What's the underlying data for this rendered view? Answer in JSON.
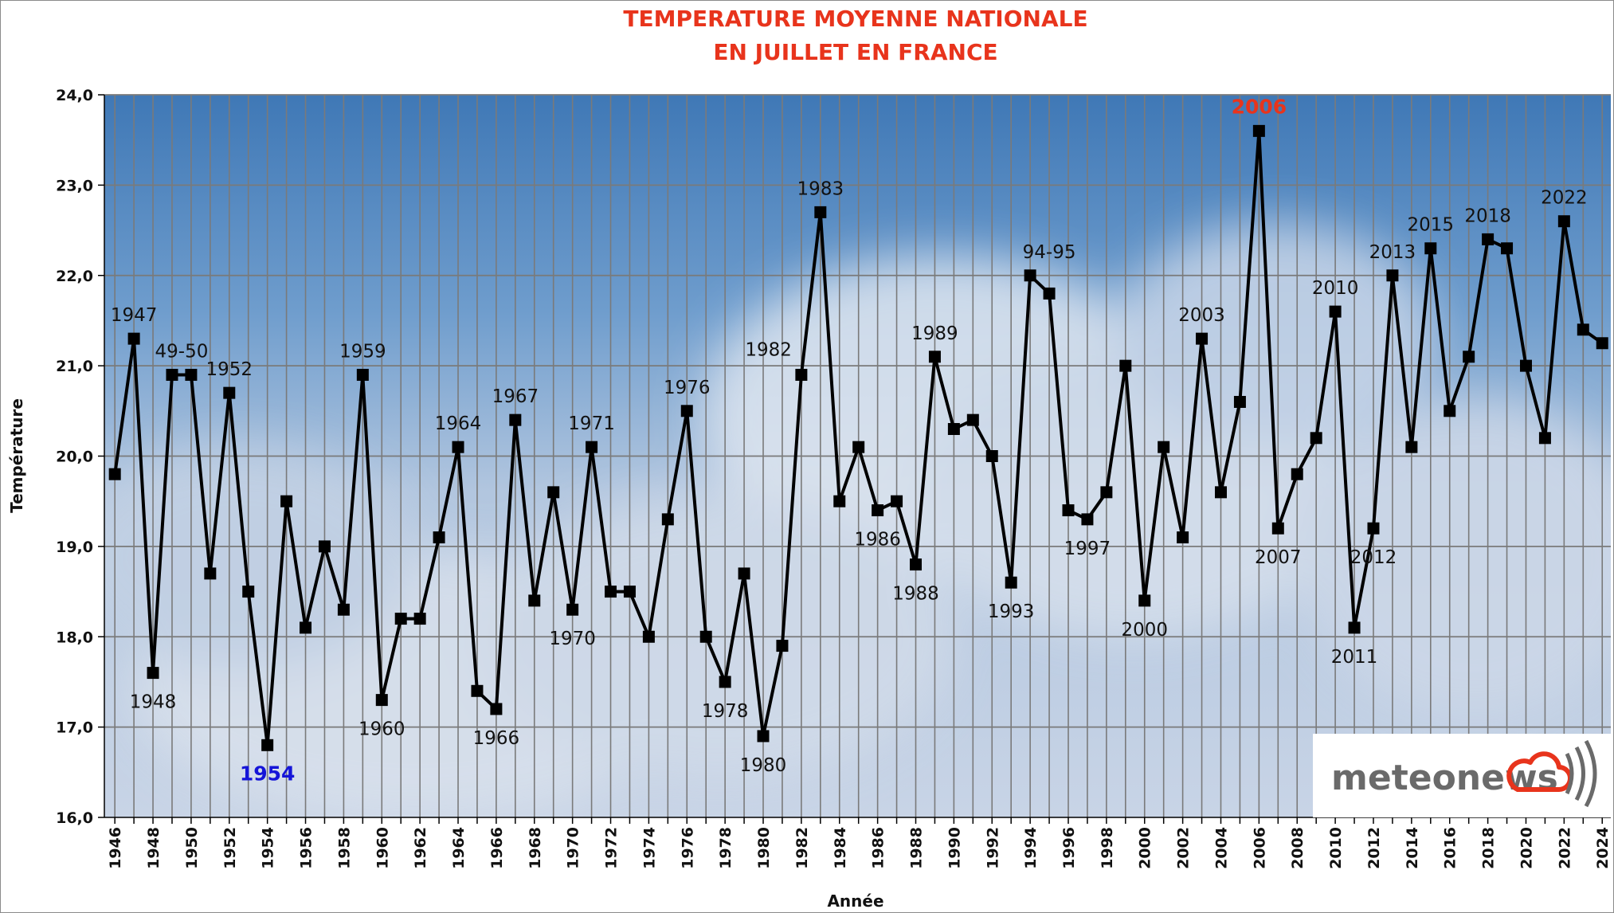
{
  "chart_data": {
    "type": "line",
    "title": "TEMPERATURE MOYENNE NATIONALE",
    "subtitle": "EN JUILLET EN FRANCE",
    "xlabel": "Année",
    "ylabel": "Température",
    "ylim": [
      16,
      24
    ],
    "xlim": [
      1946,
      2024
    ],
    "grid": true,
    "y_ticks": [
      "16,0",
      "17,0",
      "18,0",
      "19,0",
      "20,0",
      "21,0",
      "22,0",
      "23,0",
      "24,0"
    ],
    "x_ticks": [
      "1946",
      "1948",
      "1950",
      "1952",
      "1954",
      "1956",
      "1958",
      "1960",
      "1962",
      "1964",
      "1966",
      "1968",
      "1970",
      "1972",
      "1974",
      "1976",
      "1978",
      "1980",
      "1982",
      "1984",
      "1986",
      "1988",
      "1990",
      "1992",
      "1994",
      "1996",
      "1998",
      "2000",
      "2002",
      "2004",
      "2006",
      "2008",
      "2010",
      "2012",
      "2014",
      "2016",
      "2018",
      "2020",
      "2022",
      "2024"
    ],
    "series": [
      {
        "color": "#000000",
        "x": [
          1946,
          1947,
          1948,
          1949,
          1950,
          1951,
          1952,
          1953,
          1954,
          1955,
          1956,
          1957,
          1958,
          1959,
          1960,
          1961,
          1962,
          1963,
          1964,
          1965,
          1966,
          1967,
          1968,
          1969,
          1970,
          1971,
          1972,
          1973,
          1974,
          1975,
          1976,
          1977,
          1978,
          1979,
          1980,
          1981,
          1982,
          1983,
          1984,
          1985,
          1986,
          1987,
          1988,
          1989,
          1990,
          1991,
          1992,
          1993,
          1994,
          1995,
          1996,
          1997,
          1998,
          1999,
          2000,
          2001,
          2002,
          2003,
          2004,
          2005,
          2006,
          2007,
          2008,
          2009,
          2010,
          2011,
          2012,
          2013,
          2014,
          2015,
          2016,
          2017,
          2018,
          2019,
          2020,
          2021,
          2022,
          2023,
          2024
        ],
        "y": [
          19.8,
          21.3,
          17.6,
          20.9,
          20.9,
          18.7,
          20.7,
          18.5,
          16.8,
          19.5,
          18.1,
          19.0,
          18.3,
          20.9,
          17.3,
          18.2,
          18.2,
          19.1,
          20.1,
          17.4,
          17.2,
          20.4,
          18.4,
          19.6,
          18.3,
          20.1,
          18.5,
          18.5,
          18.0,
          19.3,
          20.5,
          18.0,
          17.5,
          18.7,
          16.9,
          17.9,
          20.9,
          22.7,
          19.5,
          20.1,
          19.4,
          19.5,
          18.8,
          21.1,
          20.3,
          20.4,
          20.0,
          18.6,
          22.0,
          21.8,
          19.4,
          19.3,
          19.6,
          21.0,
          18.4,
          20.1,
          19.1,
          21.3,
          19.6,
          20.6,
          23.6,
          19.2,
          19.8,
          20.2,
          21.6,
          18.1,
          19.2,
          22.0,
          20.1,
          22.3,
          20.5,
          21.1,
          22.4,
          22.3,
          21.0,
          20.2,
          22.6,
          21.4,
          21.25
        ]
      }
    ],
    "annotations": [
      {
        "text": "1947",
        "x": 1947,
        "y": 21.3,
        "pos": "above",
        "style": "normal"
      },
      {
        "text": "1948",
        "x": 1948,
        "y": 17.6,
        "pos": "below",
        "style": "normal"
      },
      {
        "text": "49-50",
        "x": 1949.5,
        "y": 20.9,
        "pos": "above",
        "style": "normal"
      },
      {
        "text": "1952",
        "x": 1952,
        "y": 20.7,
        "pos": "above",
        "style": "normal"
      },
      {
        "text": "1954",
        "x": 1954,
        "y": 16.8,
        "pos": "below",
        "style": "cold"
      },
      {
        "text": "1959",
        "x": 1959,
        "y": 20.9,
        "pos": "above",
        "style": "normal"
      },
      {
        "text": "1960",
        "x": 1960,
        "y": 17.3,
        "pos": "below",
        "style": "normal"
      },
      {
        "text": "1964",
        "x": 1964,
        "y": 20.1,
        "pos": "above",
        "style": "normal"
      },
      {
        "text": "1966",
        "x": 1966,
        "y": 17.2,
        "pos": "below",
        "style": "normal"
      },
      {
        "text": "1967",
        "x": 1967,
        "y": 20.4,
        "pos": "above",
        "style": "normal"
      },
      {
        "text": "1970",
        "x": 1970,
        "y": 18.3,
        "pos": "below",
        "style": "normal"
      },
      {
        "text": "1971",
        "x": 1971,
        "y": 20.1,
        "pos": "above",
        "style": "normal"
      },
      {
        "text": "1976",
        "x": 1976,
        "y": 20.5,
        "pos": "above",
        "style": "normal"
      },
      {
        "text": "1978",
        "x": 1978,
        "y": 17.5,
        "pos": "below",
        "style": "normal"
      },
      {
        "text": "1980",
        "x": 1980,
        "y": 16.9,
        "pos": "below",
        "style": "normal"
      },
      {
        "text": "1982",
        "x": 1982,
        "y": 20.9,
        "pos": "above-left",
        "style": "normal"
      },
      {
        "text": "1983",
        "x": 1983,
        "y": 22.7,
        "pos": "above",
        "style": "normal"
      },
      {
        "text": "1986",
        "x": 1986,
        "y": 19.4,
        "pos": "below",
        "style": "normal"
      },
      {
        "text": "1988",
        "x": 1988,
        "y": 18.8,
        "pos": "below",
        "style": "normal"
      },
      {
        "text": "1989",
        "x": 1989,
        "y": 21.1,
        "pos": "above",
        "style": "normal"
      },
      {
        "text": "1993",
        "x": 1993,
        "y": 18.6,
        "pos": "below",
        "style": "normal"
      },
      {
        "text": "94-95",
        "x": 1995,
        "y": 22.0,
        "pos": "above",
        "style": "normal"
      },
      {
        "text": "1997",
        "x": 1997,
        "y": 19.3,
        "pos": "below",
        "style": "normal"
      },
      {
        "text": "2000",
        "x": 2000,
        "y": 18.4,
        "pos": "below",
        "style": "normal"
      },
      {
        "text": "2003",
        "x": 2003,
        "y": 21.3,
        "pos": "above",
        "style": "normal"
      },
      {
        "text": "2006",
        "x": 2006,
        "y": 23.6,
        "pos": "above",
        "style": "hot"
      },
      {
        "text": "2007",
        "x": 2007,
        "y": 19.2,
        "pos": "below",
        "style": "normal"
      },
      {
        "text": "2010",
        "x": 2010,
        "y": 21.6,
        "pos": "above",
        "style": "normal"
      },
      {
        "text": "2011",
        "x": 2011,
        "y": 18.1,
        "pos": "below",
        "style": "normal"
      },
      {
        "text": "2012",
        "x": 2012,
        "y": 19.2,
        "pos": "below",
        "style": "normal"
      },
      {
        "text": "2013",
        "x": 2013,
        "y": 22.0,
        "pos": "above",
        "style": "normal"
      },
      {
        "text": "2015",
        "x": 2015,
        "y": 22.3,
        "pos": "above",
        "style": "normal"
      },
      {
        "text": "2018",
        "x": 2018,
        "y": 22.4,
        "pos": "above",
        "style": "normal"
      },
      {
        "text": "2022",
        "x": 2022,
        "y": 22.6,
        "pos": "above",
        "style": "normal"
      }
    ]
  },
  "logo": {
    "text": "meteonews",
    "icon": "cloud-icon"
  },
  "colors": {
    "title": "#e8341c",
    "hot_label": "#e8341c",
    "cold_label": "#1515d8",
    "line": "#000000",
    "grid": "#808080"
  }
}
